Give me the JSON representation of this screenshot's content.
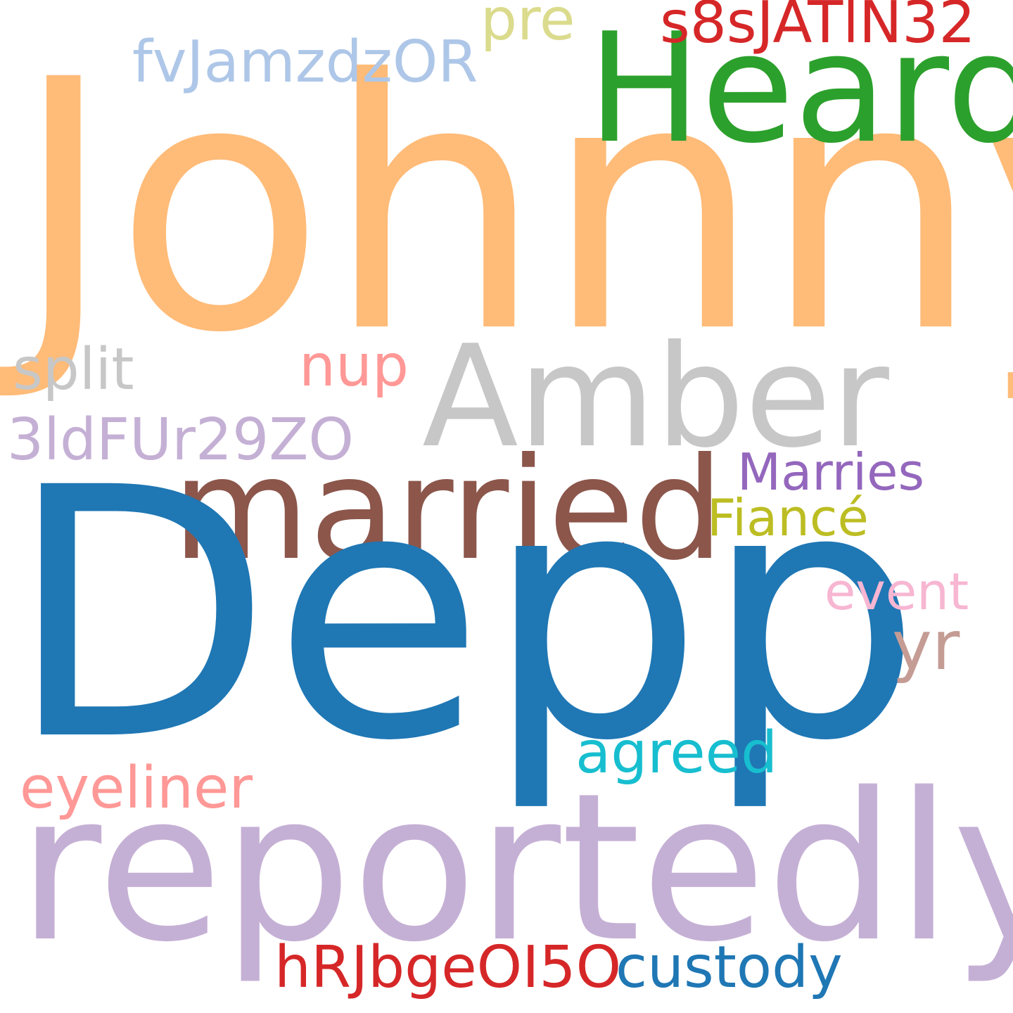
{
  "cloud": {
    "words": {
      "johnny": {
        "text": "Johnny",
        "color": "#FFBB78"
      },
      "depp": {
        "text": "Depp",
        "color": "#1F77B4"
      },
      "reportedly": {
        "text": "reportedly",
        "color": "#C5B0D5"
      },
      "heard": {
        "text": "Heard",
        "color": "#2CA02C"
      },
      "amber": {
        "text": "Amber",
        "color": "#C7C7C7"
      },
      "married": {
        "text": "married",
        "color": "#8C564B"
      },
      "fvjam": {
        "text": "fvJamzdzOR",
        "color": "#AEC7E8"
      },
      "pre": {
        "text": "pre",
        "color": "#DBDB8D"
      },
      "s8s": {
        "text": "s8sJATlN32",
        "color": "#D62728"
      },
      "split": {
        "text": "split",
        "color": "#C7C7C7"
      },
      "nup": {
        "text": "nup",
        "color": "#FF9896"
      },
      "3ld": {
        "text": "3ldFUr29ZO",
        "color": "#C5B0D5"
      },
      "marries": {
        "text": "Marries",
        "color": "#9467BD"
      },
      "fiance": {
        "text": "Fiancé",
        "color": "#BCBD22"
      },
      "event": {
        "text": "event",
        "color": "#F7B6D2"
      },
      "yr": {
        "text": "yr",
        "color": "#C49C94"
      },
      "agreed": {
        "text": "agreed",
        "color": "#17BECF"
      },
      "eyeliner": {
        "text": "eyeliner",
        "color": "#FF9896"
      },
      "hrjb": {
        "text": "hRJbgeOI5O",
        "color": "#D62728"
      },
      "custody": {
        "text": "custody",
        "color": "#1F77B4"
      }
    }
  }
}
